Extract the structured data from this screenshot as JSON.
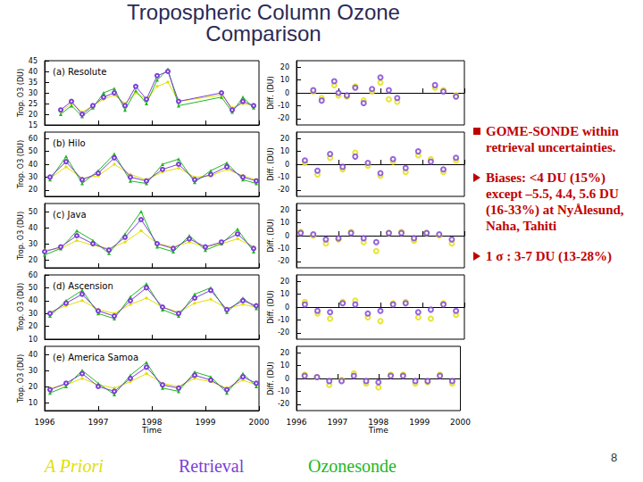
{
  "title": "Tropospheric Column Ozone Comparison",
  "bullets": [
    {
      "style": "square",
      "text": "GOME-SONDE within retrieval uncertainties."
    },
    {
      "style": "arrow",
      "text": "Biases: <4 DU (15%) except –5.5, 4.4, 5.6 DU (16-33%) at NyÅlesund, Naha, Tahiti"
    },
    {
      "style": "arrow",
      "text": "1 σ : 3-7 DU (13-28%)"
    }
  ],
  "key": [
    {
      "name": "A Priori",
      "color": "#e0e000"
    },
    {
      "name": "Retrieval",
      "color": "#7b3fd6"
    },
    {
      "name": "Ozonesonde",
      "color": "#1fb81f"
    }
  ],
  "page_number": 8,
  "chart_data": [
    {
      "type": "line",
      "title": "(a) Resolute",
      "ylabel": "Trop. O3 (DU)",
      "grid": false,
      "tick_labels": "y",
      "xlim": [
        1996,
        2000
      ],
      "xticks": [
        1996,
        1997,
        1998,
        1999,
        2000
      ],
      "ylim": [
        15,
        45
      ],
      "yticks": [
        15,
        20,
        25,
        30,
        35,
        40,
        45
      ],
      "x": [
        1996.3,
        1996.5,
        1996.7,
        1996.9,
        1997.1,
        1997.3,
        1997.5,
        1997.7,
        1997.9,
        1998.1,
        1998.3,
        1998.5,
        1999.3,
        1999.5,
        1999.7,
        1999.9
      ],
      "series": [
        {
          "name": "A Priori",
          "color": "#e0e000",
          "marker": "diamond",
          "values": [
            21,
            25,
            21,
            24,
            27,
            29,
            25,
            30,
            27,
            33,
            35,
            26,
            29,
            23,
            25,
            24
          ]
        },
        {
          "name": "Ozonesonde",
          "color": "#1fb81f",
          "marker": "triangle",
          "values": [
            20,
            24,
            19,
            23,
            30,
            32,
            22,
            31,
            25,
            36,
            41,
            24,
            28,
            21,
            28,
            23
          ]
        },
        {
          "name": "Retrieval",
          "color": "#7b3fd6",
          "marker": "circle",
          "values": [
            22,
            26,
            20,
            24,
            28,
            30,
            24,
            33,
            27,
            38,
            40,
            26,
            30,
            22,
            26,
            24
          ]
        }
      ]
    },
    {
      "type": "scatter",
      "ylabel": "Diff. (DU)",
      "grid": false,
      "tick_labels": "y",
      "xlim": [
        1996,
        2000
      ],
      "xticks": [
        1996,
        1997,
        1998,
        1999,
        2000
      ],
      "ylim": [
        -25,
        25
      ],
      "yticks": [
        -20,
        -10,
        0,
        10,
        20
      ],
      "x": [
        1996.4,
        1996.6,
        1996.9,
        1997.0,
        1997.2,
        1997.4,
        1997.6,
        1997.8,
        1998.0,
        1998.2,
        1998.4,
        1999.3,
        1999.5,
        1999.8
      ],
      "series": [
        {
          "name": "A Priori",
          "color": "#e0e000",
          "marker": "circle",
          "values": [
            1,
            -4,
            6,
            -2,
            -3,
            5,
            -6,
            1,
            8,
            -5,
            -7,
            4,
            2,
            -2
          ]
        },
        {
          "name": "Retrieval",
          "color": "#7b3fd6",
          "marker": "circle",
          "values": [
            2,
            -6,
            9,
            0,
            -2,
            4,
            -8,
            3,
            12,
            2,
            -4,
            6,
            1,
            -3
          ]
        }
      ]
    },
    {
      "type": "line",
      "title": "(b) Hilo",
      "ylabel": "Trop. O3 (DU)",
      "grid": false,
      "tick_labels": "y",
      "xlim": [
        1996,
        2000
      ],
      "xticks": [
        1996,
        1997,
        1998,
        1999,
        2000
      ],
      "ylim": [
        15,
        65
      ],
      "yticks": [
        20,
        30,
        40,
        50,
        60
      ],
      "x": [
        1996.1,
        1996.4,
        1996.7,
        1997.0,
        1997.3,
        1997.6,
        1997.9,
        1998.2,
        1998.5,
        1998.8,
        1999.1,
        1999.4,
        1999.7,
        1999.95
      ],
      "series": [
        {
          "name": "A Priori",
          "color": "#e0e000",
          "marker": "diamond",
          "values": [
            29,
            38,
            29,
            31,
            40,
            32,
            28,
            34,
            37,
            30,
            31,
            36,
            31,
            28
          ]
        },
        {
          "name": "Ozonesonde",
          "color": "#1fb81f",
          "marker": "triangle",
          "values": [
            28,
            46,
            25,
            35,
            48,
            27,
            25,
            40,
            44,
            26,
            35,
            41,
            28,
            25
          ]
        },
        {
          "name": "Retrieval",
          "color": "#7b3fd6",
          "marker": "circle",
          "values": [
            30,
            42,
            28,
            33,
            45,
            30,
            27,
            36,
            40,
            28,
            32,
            38,
            30,
            27
          ]
        }
      ]
    },
    {
      "type": "scatter",
      "ylabel": "Diff. (DU)",
      "grid": false,
      "tick_labels": "y",
      "xlim": [
        1996,
        2000
      ],
      "xticks": [
        1996,
        1997,
        1998,
        1999,
        2000
      ],
      "ylim": [
        -25,
        25
      ],
      "yticks": [
        -20,
        -10,
        0,
        10,
        20
      ],
      "x": [
        1996.2,
        1996.5,
        1996.8,
        1997.1,
        1997.4,
        1997.7,
        1998.0,
        1998.3,
        1998.6,
        1998.9,
        1999.2,
        1999.5,
        1999.8
      ],
      "series": [
        {
          "name": "A Priori",
          "color": "#e0e000",
          "marker": "circle",
          "values": [
            1,
            -8,
            5,
            -4,
            9,
            -1,
            -9,
            2,
            -6,
            7,
            4,
            -6,
            3
          ]
        },
        {
          "name": "Retrieval",
          "color": "#7b3fd6",
          "marker": "circle",
          "values": [
            3,
            -5,
            8,
            -2,
            6,
            1,
            -7,
            4,
            -3,
            10,
            2,
            -4,
            5
          ]
        }
      ]
    },
    {
      "type": "line",
      "title": "(c) Java",
      "ylabel": "Trop. O3 (DU)",
      "grid": false,
      "tick_labels": "y",
      "xlim": [
        1996,
        2000
      ],
      "xticks": [
        1996,
        1997,
        1998,
        1999,
        2000
      ],
      "ylim": [
        15,
        55
      ],
      "yticks": [
        20,
        30,
        40,
        50
      ],
      "x": [
        1996.0,
        1996.3,
        1996.6,
        1996.9,
        1997.2,
        1997.5,
        1997.8,
        1998.1,
        1998.4,
        1998.7,
        1999.0,
        1999.3,
        1999.6,
        1999.9
      ],
      "series": [
        {
          "name": "A Priori",
          "color": "#e0e000",
          "marker": "diamond",
          "values": [
            26,
            27,
            32,
            29,
            27,
            31,
            38,
            30,
            28,
            31,
            28,
            30,
            33,
            28
          ]
        },
        {
          "name": "Ozonesonde",
          "color": "#1fb81f",
          "marker": "triangle",
          "values": [
            23,
            27,
            38,
            32,
            24,
            36,
            50,
            28,
            25,
            35,
            26,
            30,
            39,
            25
          ]
        },
        {
          "name": "Retrieval",
          "color": "#7b3fd6",
          "marker": "circle",
          "values": [
            25,
            28,
            35,
            30,
            26,
            34,
            45,
            30,
            27,
            33,
            28,
            31,
            36,
            27
          ]
        }
      ]
    },
    {
      "type": "scatter",
      "ylabel": "Diff. (DU)",
      "grid": false,
      "tick_labels": "y",
      "xlim": [
        1996,
        2000
      ],
      "xticks": [
        1996,
        1997,
        1998,
        1999,
        2000
      ],
      "ylim": [
        -25,
        25
      ],
      "yticks": [
        -20,
        -10,
        0,
        10,
        20
      ],
      "x": [
        1996.1,
        1996.4,
        1996.7,
        1997.0,
        1997.3,
        1997.6,
        1997.9,
        1998.2,
        1998.5,
        1998.8,
        1999.1,
        1999.4,
        1999.7
      ],
      "series": [
        {
          "name": "A Priori",
          "color": "#e0e000",
          "marker": "circle",
          "values": [
            3,
            0,
            -6,
            -3,
            3,
            -5,
            -12,
            2,
            3,
            -4,
            2,
            0,
            -6
          ]
        },
        {
          "name": "Retrieval",
          "color": "#7b3fd6",
          "marker": "circle",
          "values": [
            2,
            1,
            -3,
            -2,
            2,
            -2,
            -5,
            2,
            2,
            -2,
            2,
            1,
            -3
          ]
        }
      ]
    },
    {
      "type": "line",
      "title": "(d) Ascension",
      "ylabel": "Trop. O3 (DU)",
      "grid": false,
      "tick_labels": "y",
      "xlim": [
        1996,
        2000
      ],
      "xticks": [
        1996,
        1997,
        1998,
        1999,
        2000
      ],
      "ylim": [
        10,
        60
      ],
      "yticks": [
        10,
        20,
        30,
        40,
        50,
        60
      ],
      "x": [
        1996.1,
        1996.4,
        1996.7,
        1997.0,
        1997.3,
        1997.6,
        1997.9,
        1998.2,
        1998.5,
        1998.8,
        1999.1,
        1999.4,
        1999.7,
        1999.95
      ],
      "series": [
        {
          "name": "A Priori",
          "color": "#e0e000",
          "marker": "diamond",
          "values": [
            31,
            36,
            40,
            33,
            30,
            37,
            42,
            35,
            31,
            38,
            41,
            34,
            37,
            35
          ]
        },
        {
          "name": "Ozonesonde",
          "color": "#1fb81f",
          "marker": "triangle",
          "values": [
            28,
            40,
            48,
            30,
            26,
            43,
            53,
            33,
            28,
            45,
            50,
            31,
            42,
            34
          ]
        },
        {
          "name": "Retrieval",
          "color": "#7b3fd6",
          "marker": "circle",
          "values": [
            30,
            38,
            45,
            32,
            28,
            40,
            50,
            35,
            30,
            42,
            48,
            33,
            40,
            36
          ]
        }
      ]
    },
    {
      "type": "scatter",
      "ylabel": "Diff. (DU)",
      "grid": false,
      "tick_labels": "y",
      "xlim": [
        1996,
        2000
      ],
      "xticks": [
        1996,
        1997,
        1998,
        1999,
        2000
      ],
      "ylim": [
        -25,
        25
      ],
      "yticks": [
        -20,
        -10,
        0,
        10,
        20
      ],
      "x": [
        1996.2,
        1996.5,
        1996.8,
        1997.1,
        1997.4,
        1997.7,
        1998.0,
        1998.3,
        1998.6,
        1998.9,
        1999.2,
        1999.5,
        1999.8
      ],
      "series": [
        {
          "name": "A Priori",
          "color": "#e0e000",
          "marker": "circle",
          "values": [
            4,
            -5,
            -9,
            4,
            5,
            -8,
            -11,
            3,
            4,
            -8,
            -9,
            3,
            -6
          ]
        },
        {
          "name": "Retrieval",
          "color": "#7b3fd6",
          "marker": "circle",
          "values": [
            2,
            -3,
            -4,
            3,
            2,
            -5,
            -3,
            2,
            3,
            -4,
            -2,
            2,
            -3
          ]
        }
      ]
    },
    {
      "type": "line",
      "title": "(e) America Samoa",
      "ylabel": "Trop. O3 (DU)",
      "xlabel": "Time",
      "grid": false,
      "tick_labels": true,
      "xlim": [
        1996,
        2000
      ],
      "xticks": [
        1996,
        1997,
        1998,
        1999,
        2000
      ],
      "ylim": [
        5,
        45
      ],
      "yticks": [
        10,
        20,
        30,
        40
      ],
      "x": [
        1996.1,
        1996.4,
        1996.7,
        1997.0,
        1997.3,
        1997.6,
        1997.9,
        1998.2,
        1998.5,
        1998.8,
        1999.1,
        1999.4,
        1999.7,
        1999.95
      ],
      "series": [
        {
          "name": "A Priori",
          "color": "#e0e000",
          "marker": "diamond",
          "values": [
            19,
            21,
            25,
            21,
            19,
            23,
            28,
            22,
            20,
            25,
            23,
            19,
            24,
            21
          ]
        },
        {
          "name": "Ozonesonde",
          "color": "#1fb81f",
          "marker": "triangle",
          "values": [
            16,
            20,
            30,
            22,
            15,
            27,
            35,
            19,
            17,
            29,
            26,
            16,
            28,
            20
          ]
        },
        {
          "name": "Retrieval",
          "color": "#7b3fd6",
          "marker": "circle",
          "values": [
            18,
            22,
            28,
            20,
            17,
            25,
            32,
            21,
            19,
            27,
            24,
            18,
            26,
            22
          ]
        }
      ]
    },
    {
      "type": "scatter",
      "ylabel": "Diff. (DU)",
      "xlabel": "Time",
      "grid": false,
      "tick_labels": true,
      "xlim": [
        1996,
        2000
      ],
      "xticks": [
        1996,
        1997,
        1998,
        1999,
        2000
      ],
      "ylim": [
        -25,
        25
      ],
      "yticks": [
        -20,
        -10,
        0,
        10,
        20
      ],
      "x": [
        1996.2,
        1996.5,
        1996.8,
        1997.1,
        1997.4,
        1997.7,
        1998.0,
        1998.3,
        1998.6,
        1998.9,
        1999.2,
        1999.5,
        1999.8
      ],
      "series": [
        {
          "name": "A Priori",
          "color": "#e0e000",
          "marker": "circle",
          "values": [
            3,
            1,
            -5,
            -1,
            4,
            -4,
            -7,
            3,
            3,
            -4,
            -3,
            3,
            -4
          ]
        },
        {
          "name": "Retrieval",
          "color": "#7b3fd6",
          "marker": "circle",
          "values": [
            2,
            1,
            -2,
            -2,
            2,
            -2,
            -3,
            2,
            2,
            -2,
            -2,
            2,
            -2
          ]
        }
      ]
    }
  ]
}
